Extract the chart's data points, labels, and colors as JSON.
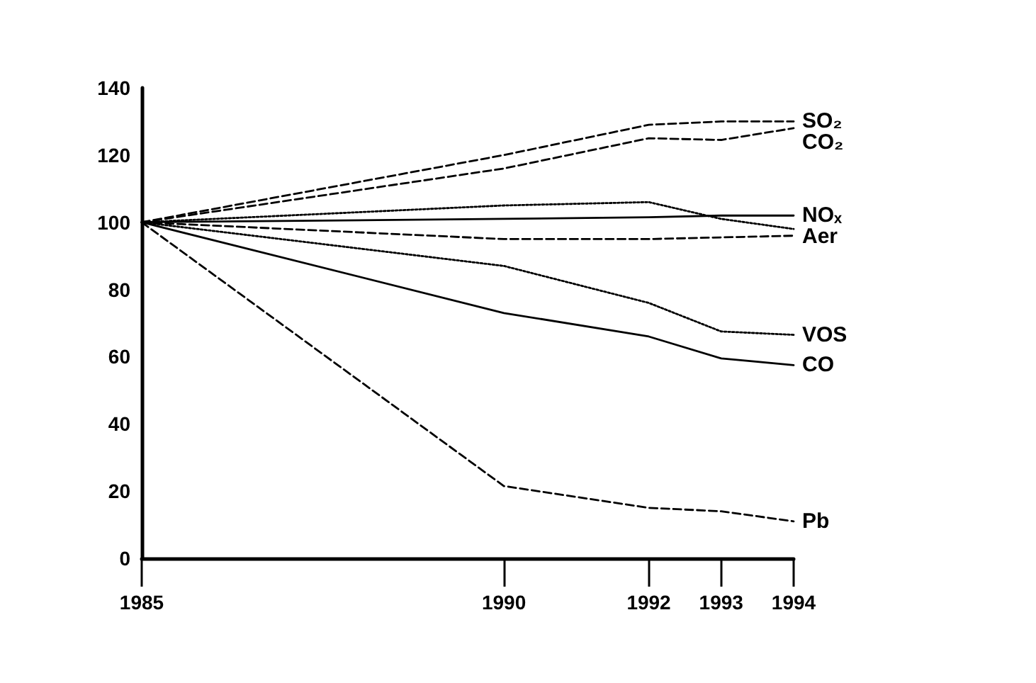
{
  "chart_data": {
    "type": "line",
    "x": [
      1985,
      1990,
      1992,
      1993,
      1994
    ],
    "series": [
      {
        "name": "SO₂",
        "color": "#000000",
        "line_style": "dashed",
        "values": [
          100,
          120,
          129,
          130,
          130
        ]
      },
      {
        "name": "CO₂",
        "color": "#000000",
        "line_style": "dashed",
        "values": [
          100,
          116,
          125,
          124.5,
          128
        ]
      },
      {
        "color": "#000000",
        "line_style": "dotted",
        "values": [
          100,
          105,
          106,
          101,
          98
        ]
      },
      {
        "name": "NOₓ",
        "color": "#000000",
        "line_style": "solid",
        "values": [
          100,
          101,
          101.5,
          102,
          102
        ]
      },
      {
        "name": "Aer",
        "color": "#000000",
        "line_style": "dashed",
        "values": [
          100,
          95,
          95,
          95.5,
          96
        ]
      },
      {
        "name": "VOS",
        "color": "#000000",
        "line_style": "dotted",
        "values": [
          100,
          87,
          76,
          67.5,
          66.5
        ]
      },
      {
        "name": "CO",
        "color": "#000000",
        "line_style": "solid",
        "values": [
          100,
          73,
          66,
          59.5,
          57.5
        ]
      },
      {
        "name": "Pb",
        "color": "#000000",
        "line_style": "dashed",
        "values": [
          100,
          21.5,
          15,
          14,
          11
        ]
      }
    ],
    "xlim": [
      1985,
      1994
    ],
    "xticks": [
      1985,
      1990,
      1992,
      1993,
      1994
    ],
    "ylim": [
      0,
      140
    ],
    "yticks": [
      0,
      20,
      40,
      60,
      80,
      100,
      120,
      140
    ],
    "grid": false,
    "legend": false,
    "marker": "none"
  }
}
